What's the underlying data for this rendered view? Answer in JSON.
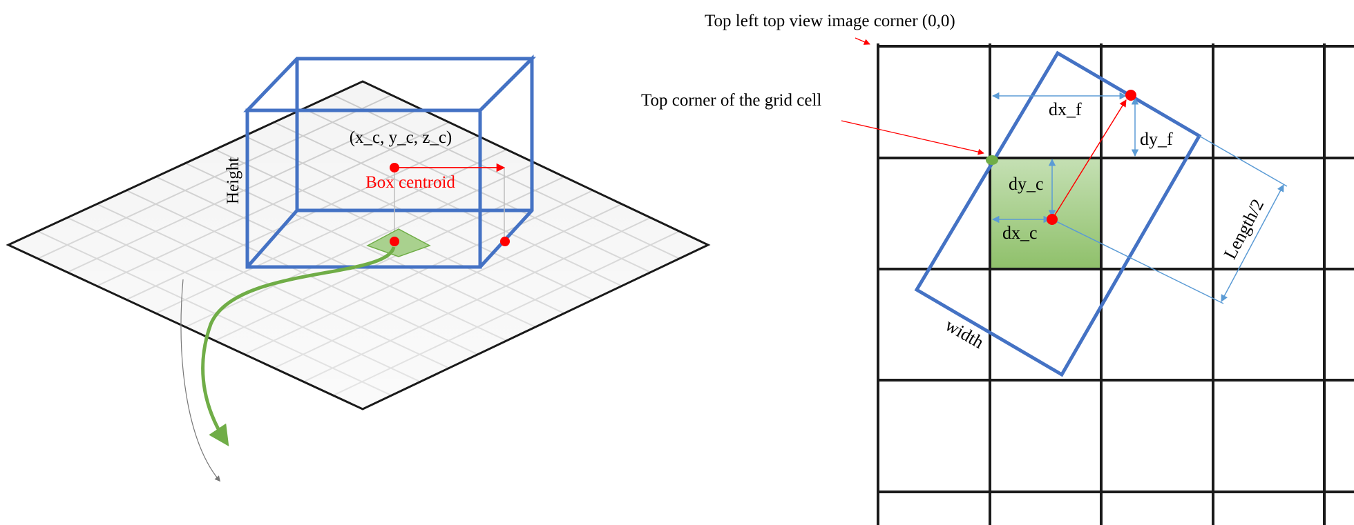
{
  "colors": {
    "box_blue": "#4472C4",
    "centroid_red": "#FF0000",
    "cell_green": "#70AD47",
    "cell_fill": "#A9D18E",
    "dim_blue": "#5B9BD5",
    "grid_black": "#1a1a1a",
    "floor_grid": "#c8c8c8"
  },
  "left_diagram": {
    "centroid_label": "(x_c, y_c, z_c)",
    "box_centroid_label": "Box centroid",
    "height_label": "Height"
  },
  "right_diagram": {
    "top_left_corner_label": "Top left top view image corner (0,0)",
    "grid_cell_corner_label": "Top corner of the grid cell",
    "dx_f_label": "dx_f",
    "dy_f_label": "dy_f",
    "dy_c_label": "dy_c",
    "dx_c_label": "dx_c",
    "length_half_label": "Length/2",
    "width_label": "width"
  }
}
